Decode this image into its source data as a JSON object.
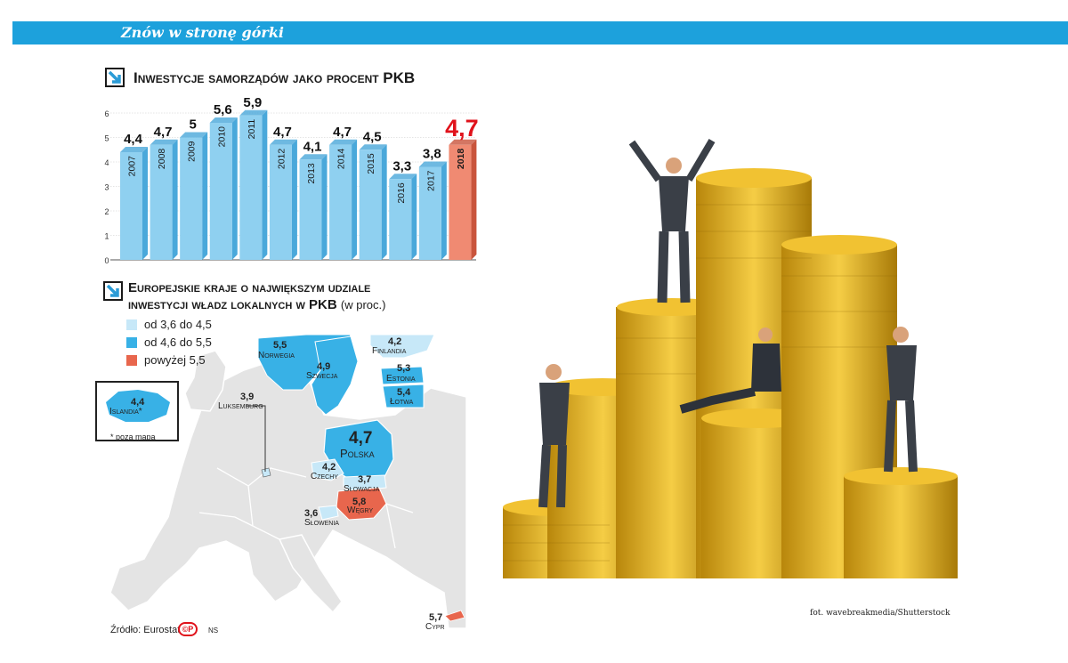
{
  "banner": {
    "title": "Znów w stronę górki"
  },
  "chart_section": {
    "heading": "Inwestycje samorządów jako procent PKB"
  },
  "chart_data": {
    "type": "bar",
    "title": "Inwestycje samorządów jako procent PKB",
    "categories": [
      "2007",
      "2008",
      "2009",
      "2010",
      "2011",
      "2012",
      "2013",
      "2014",
      "2015",
      "2016",
      "2017",
      "2018"
    ],
    "values": [
      4.4,
      4.7,
      5,
      5.6,
      5.9,
      4.7,
      4.1,
      4.7,
      4.5,
      3.3,
      3.8,
      4.7
    ],
    "value_labels": [
      "4,4",
      "4,7",
      "5",
      "5,6",
      "5,9",
      "4,7",
      "4,1",
      "4,7",
      "4,5",
      "3,3",
      "3,8",
      "4,7"
    ],
    "yticks": [
      "0",
      "1",
      "2",
      "3",
      "4",
      "5",
      "6"
    ],
    "ylim": [
      0,
      6
    ],
    "grid": true,
    "highlight_index": 11,
    "colors": {
      "bar": "#8fd0f0",
      "bar_dark": "#4aa8da",
      "highlight": "#f08a72",
      "highlight_dark": "#c9543c",
      "highlight_label": "#e0121b"
    }
  },
  "map_section": {
    "heading_line1": "Europejskie kraje o największym udziale",
    "heading_line2": "inwestycji władz lokalnych w PKB",
    "heading_suffix": "(w proc.)",
    "legend": [
      {
        "label": "od 3,6 do 4,5",
        "color": "#c7e8f8"
      },
      {
        "label": "od 4,6 do 5,5",
        "color": "#38b1e6"
      },
      {
        "label": "powyżej 5,5",
        "color": "#e8664d"
      }
    ],
    "countries": [
      {
        "name": "Norwegia",
        "value": "5,5"
      },
      {
        "name": "Finlandia",
        "value": "4,2"
      },
      {
        "name": "Szwecja",
        "value": "4,9"
      },
      {
        "name": "Estonia",
        "value": "5,3"
      },
      {
        "name": "Łotwa",
        "value": "5,4"
      },
      {
        "name": "Polska",
        "value": "4,7"
      },
      {
        "name": "Czechy",
        "value": "4,2"
      },
      {
        "name": "Słowacja",
        "value": "3,7"
      },
      {
        "name": "Węgry",
        "value": "5,8"
      },
      {
        "name": "Słowenia",
        "value": "3,6"
      },
      {
        "name": "Luksemburg",
        "value": "3,9"
      },
      {
        "name": "Cypr",
        "value": "5,7"
      }
    ],
    "iceland": {
      "name": "Islandia*",
      "value": "4,4",
      "note": "* poza mapą"
    },
    "colors": {
      "land": "#e4e4e4",
      "sea": "#ffffff"
    }
  },
  "footer": {
    "source": "Źródło: Eurostat",
    "logo": "©P",
    "author": "NS"
  },
  "photo": {
    "credit": "fot. wavebreakmedia/Shutterstock",
    "coin_color": "#e8b925"
  }
}
